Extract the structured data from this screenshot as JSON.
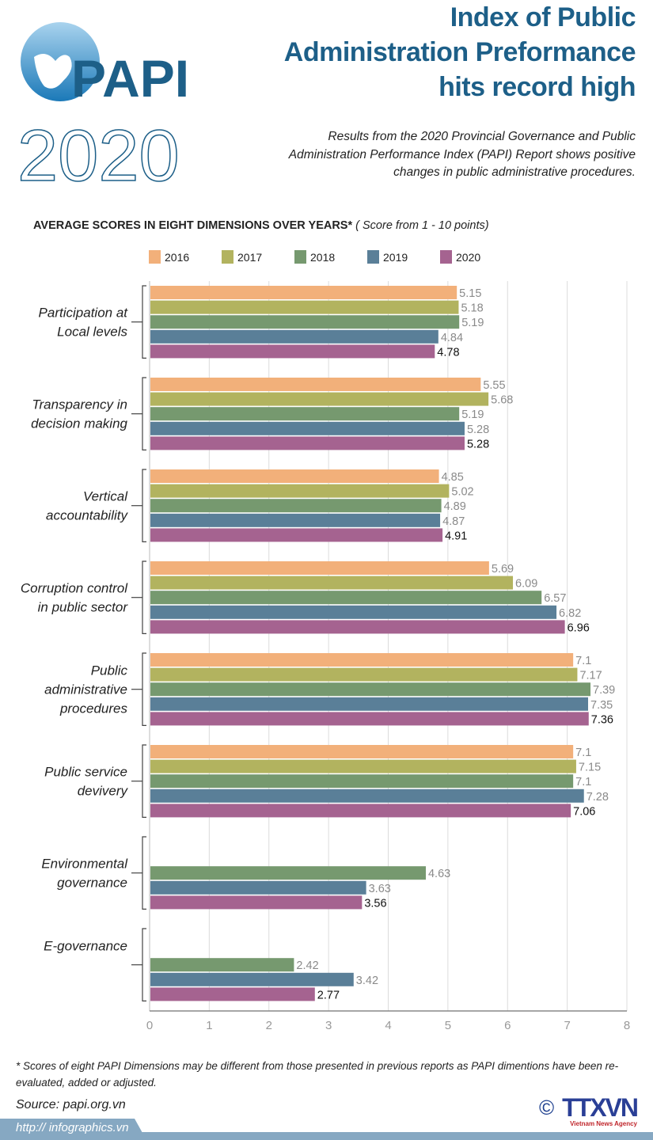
{
  "logo": {
    "text": "PAPI",
    "year": "2020"
  },
  "header": {
    "title_lines": [
      "Index of Public",
      "Administration Preformance",
      "hits record high"
    ],
    "subtitle_lines": [
      "Results from the 2020 Provincial Governance and Public",
      "Administration Performance Index (PAPI) Report shows positive",
      "changes in  public administrative procedures."
    ]
  },
  "chart_data": {
    "type": "bar",
    "orientation": "horizontal",
    "title": "AVERAGE SCORES IN EIGHT DIMENSIONS OVER YEARS*",
    "subtitle": "( Score from 1 - 10 points)",
    "categories": [
      [
        "Participation at",
        "Local levels"
      ],
      [
        "Transparency in",
        "decision making"
      ],
      [
        "Vertical",
        "accountability"
      ],
      [
        "Corruption control",
        "in public sector"
      ],
      [
        "Public",
        "administrative",
        "procedures"
      ],
      [
        "Public service",
        "devivery"
      ],
      [
        "Environmental",
        "governance"
      ],
      [
        "E-governance"
      ]
    ],
    "series": [
      {
        "name": "2016",
        "color": "#f2b07a",
        "values": [
          5.15,
          5.55,
          4.85,
          5.69,
          7.1,
          7.1,
          null,
          null
        ],
        "labels": [
          "5.15",
          "5.55",
          "4.85",
          "5.69",
          "7.1",
          "7.1",
          null,
          null
        ]
      },
      {
        "name": "2017",
        "color": "#b2b35f",
        "values": [
          5.18,
          5.68,
          5.02,
          6.09,
          7.17,
          7.15,
          null,
          null
        ],
        "labels": [
          "5.18",
          "5.68",
          "5.02",
          "6.09",
          "7.17",
          "7.15",
          null,
          null
        ]
      },
      {
        "name": "2018",
        "color": "#76996f",
        "values": [
          5.19,
          5.19,
          4.89,
          6.57,
          7.39,
          7.1,
          4.63,
          2.42
        ],
        "labels": [
          "5.19",
          "5.19",
          "4.89",
          "6.57",
          "7.39",
          "7.1",
          "4.63",
          "2.42"
        ]
      },
      {
        "name": "2019",
        "color": "#5a7f98",
        "values": [
          4.84,
          5.28,
          4.87,
          6.82,
          7.35,
          7.28,
          3.63,
          3.42
        ],
        "labels": [
          "4.84",
          "5.28",
          "4.87",
          "6.82",
          "7.35",
          "7.28",
          "3.63",
          "3.42"
        ]
      },
      {
        "name": "2020",
        "color": "#a56390",
        "values": [
          4.78,
          5.28,
          4.91,
          6.96,
          7.36,
          7.06,
          3.56,
          2.77
        ],
        "labels": [
          "4.78",
          "5.28",
          "4.91",
          "6.96",
          "7.36",
          "7.06",
          "3.56",
          "2.77"
        ]
      }
    ],
    "xlim": [
      0,
      8
    ],
    "xticks": [
      "0",
      "1",
      "2",
      "3",
      "4",
      "5",
      "6",
      "7",
      "8"
    ],
    "grid": true,
    "legend": "top"
  },
  "footnote": "* Scores of eight PAPI Dimensions may be different from those presented in previous reports  as PAPI dimentions have been re-evaluated, added or adjusted.",
  "source": "Source: papi.org.vn",
  "url": "http:// infographics.vn",
  "credit": {
    "copyright": "©",
    "brand": "TTXVN",
    "agency": "Vietnam News Agency"
  }
}
